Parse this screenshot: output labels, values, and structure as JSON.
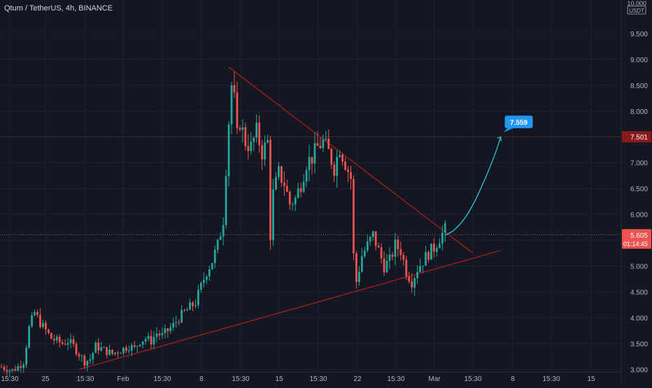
{
  "header": {
    "title": "Qtum / TetherUS, 4h, BINANCE"
  },
  "axis": {
    "unit_label": "USDT",
    "top_label": "10.000",
    "y_ticks": [
      "9.500",
      "9.000",
      "8.500",
      "8.000",
      "7.500",
      "7.000",
      "6.500",
      "6.000",
      "5.500",
      "5.000",
      "4.500",
      "4.000",
      "3.500",
      "3.000"
    ],
    "x_ticks": [
      "15:30",
      "25",
      "15:30",
      "Feb",
      "15:30",
      "8",
      "15:30",
      "15",
      "15:30",
      "22",
      "15:30",
      "Mar",
      "15:30",
      "8",
      "15:30",
      "15"
    ]
  },
  "price_tags": {
    "resistance": "7.501",
    "current": "5.605",
    "countdown": "01:14:45",
    "target": "7.559"
  },
  "colors": {
    "background": "#131722",
    "grid": "#1e2230",
    "up": "#26a69a",
    "down": "#ef5350",
    "trendline": "#b71c1c",
    "resistance": "#b71c1c",
    "projection": "#26c6da",
    "target_bg": "#2196f3"
  },
  "chart_data": {
    "type": "candlestick",
    "title": "Qtum / TetherUS, 4h, BINANCE",
    "ylim": [
      2.95,
      10.0
    ],
    "y_unit": "USDT",
    "resistance_level": 7.501,
    "current_price": 5.605,
    "projection_target": 7.559,
    "close_path": [
      [
        0,
        3.05
      ],
      [
        2,
        3.0
      ],
      [
        4,
        2.98
      ],
      [
        6,
        3.05
      ],
      [
        8,
        3.15
      ],
      [
        10,
        3.8
      ],
      [
        12,
        4.1
      ],
      [
        14,
        3.9
      ],
      [
        16,
        3.75
      ],
      [
        18,
        3.6
      ],
      [
        20,
        3.55
      ],
      [
        22,
        3.5
      ],
      [
        24,
        3.55
      ],
      [
        26,
        3.45
      ],
      [
        28,
        3.3
      ],
      [
        30,
        3.15
      ],
      [
        32,
        3.2
      ],
      [
        34,
        3.45
      ],
      [
        36,
        3.4
      ],
      [
        38,
        3.35
      ],
      [
        40,
        3.3
      ],
      [
        42,
        3.35
      ],
      [
        44,
        3.4
      ],
      [
        46,
        3.45
      ],
      [
        48,
        3.4
      ],
      [
        50,
        3.55
      ],
      [
        52,
        3.6
      ],
      [
        54,
        3.55
      ],
      [
        56,
        3.7
      ],
      [
        58,
        3.65
      ],
      [
        60,
        3.75
      ],
      [
        62,
        3.85
      ],
      [
        64,
        4.0
      ],
      [
        66,
        4.1
      ],
      [
        68,
        4.2
      ],
      [
        70,
        4.3
      ],
      [
        72,
        4.6
      ],
      [
        74,
        4.9
      ],
      [
        76,
        5.1
      ],
      [
        78,
        5.4
      ],
      [
        80,
        5.9
      ],
      [
        81,
        6.9
      ],
      [
        82,
        7.8
      ],
      [
        83,
        8.5
      ],
      [
        84,
        8.2
      ],
      [
        85,
        7.5
      ],
      [
        86,
        7.8
      ],
      [
        88,
        7.4
      ],
      [
        90,
        7.3
      ],
      [
        92,
        7.6
      ],
      [
        94,
        7.2
      ],
      [
        96,
        7.4
      ],
      [
        97,
        5.6
      ],
      [
        98,
        6.4
      ],
      [
        100,
        6.8
      ],
      [
        102,
        6.6
      ],
      [
        104,
        6.2
      ],
      [
        106,
        6.3
      ],
      [
        108,
        6.6
      ],
      [
        110,
        7.0
      ],
      [
        112,
        7.1
      ],
      [
        114,
        7.3
      ],
      [
        116,
        7.4
      ],
      [
        118,
        7.2
      ],
      [
        120,
        6.9
      ],
      [
        122,
        7.3
      ],
      [
        124,
        7.0
      ],
      [
        126,
        6.7
      ],
      [
        127,
        5.2
      ],
      [
        128,
        4.7
      ],
      [
        130,
        5.2
      ],
      [
        132,
        5.4
      ],
      [
        134,
        5.6
      ],
      [
        136,
        5.3
      ],
      [
        138,
        5.0
      ],
      [
        140,
        5.1
      ],
      [
        142,
        5.4
      ],
      [
        144,
        5.3
      ],
      [
        146,
        4.9
      ],
      [
        148,
        4.7
      ],
      [
        150,
        4.95
      ],
      [
        152,
        5.1
      ],
      [
        154,
        5.25
      ],
      [
        156,
        5.35
      ],
      [
        158,
        5.55
      ],
      [
        160,
        5.7
      ]
    ],
    "trendlines": [
      {
        "name": "upper",
        "from": [
          82,
          8.85
        ],
        "to": [
          170,
          5.25
        ]
      },
      {
        "name": "lower",
        "from": [
          28,
          3.0
        ],
        "to": [
          180,
          5.3
        ]
      }
    ],
    "projection_path": [
      [
        160,
        5.6
      ],
      [
        166,
        5.7
      ],
      [
        172,
        6.4
      ],
      [
        180,
        7.5
      ]
    ],
    "n_slots": 224
  }
}
